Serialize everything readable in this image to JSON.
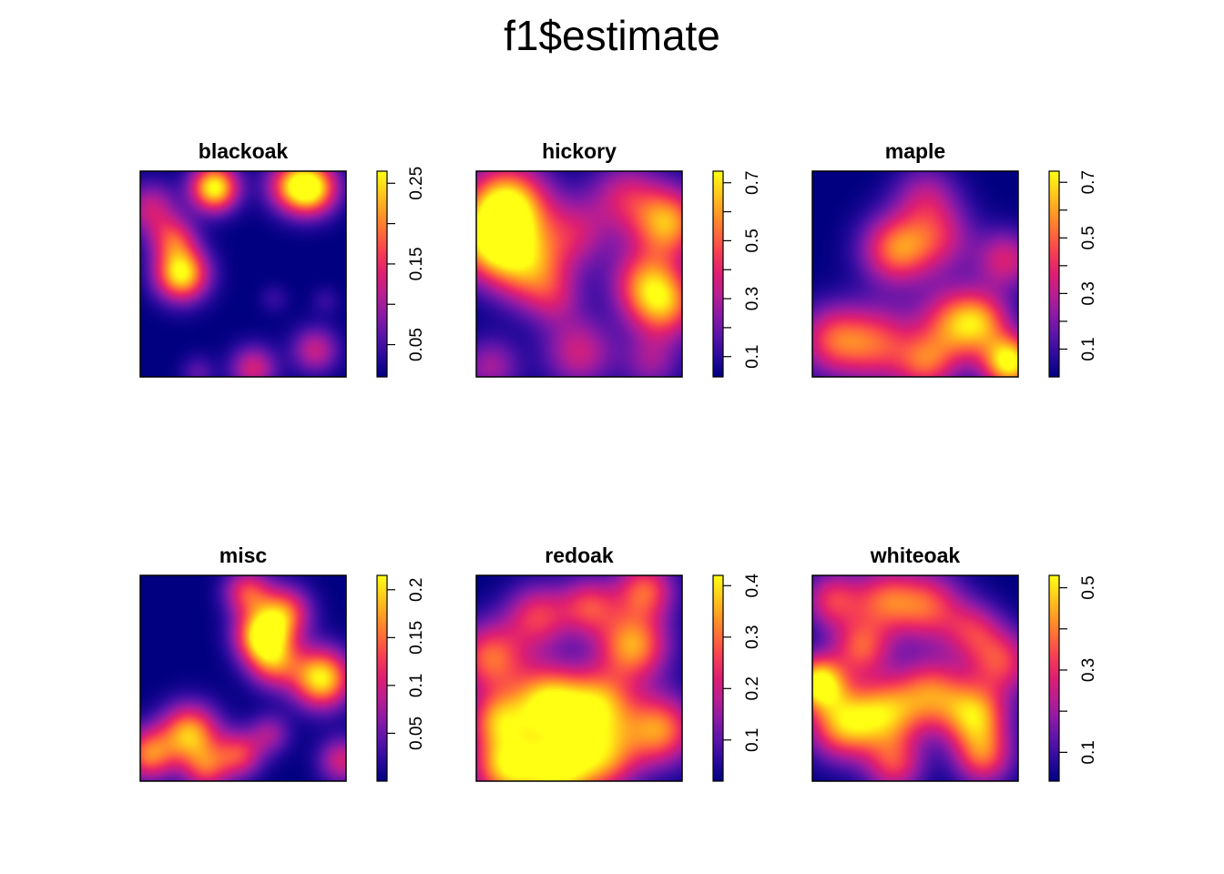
{
  "title": "f1$estimate",
  "palette": [
    "#000080",
    "#2a0a9c",
    "#5a14a8",
    "#8a1aa6",
    "#b81e92",
    "#dd1e72",
    "#f53c55",
    "#ff6a3a",
    "#ff9b25",
    "#ffcd1a",
    "#ffff14"
  ],
  "chart_data": [
    {
      "type": "heatmap",
      "title": "blackoak",
      "range": [
        0.01,
        0.265
      ],
      "ticks": [
        "0.05",
        "0.15",
        "0.25"
      ],
      "tick_values": [
        0.05,
        0.15,
        0.25
      ],
      "minor_ticks": [
        0.05,
        0.1,
        0.15,
        0.2,
        0.25
      ],
      "hotspots": [
        [
          0.36,
          0.08,
          0.26,
          0.08
        ],
        [
          0.83,
          0.08,
          0.24,
          0.09
        ],
        [
          0.73,
          0.07,
          0.13,
          0.09
        ],
        [
          0.2,
          0.5,
          0.25,
          0.09
        ],
        [
          0.05,
          0.18,
          0.11,
          0.09
        ],
        [
          0.16,
          0.33,
          0.13,
          0.08
        ],
        [
          0.55,
          0.96,
          0.12,
          0.08
        ],
        [
          0.85,
          0.87,
          0.11,
          0.08
        ],
        [
          0.28,
          0.98,
          0.05,
          0.06
        ],
        [
          0.65,
          0.62,
          0.03,
          0.05
        ],
        [
          0.9,
          0.63,
          0.03,
          0.05
        ]
      ]
    },
    {
      "type": "heatmap",
      "title": "hickory",
      "range": [
        0.03,
        0.74
      ],
      "ticks": [
        "0.1",
        "0.3",
        "0.5",
        "0.7"
      ],
      "tick_values": [
        0.1,
        0.3,
        0.5,
        0.7
      ],
      "minor_ticks": [
        0.1,
        0.2,
        0.3,
        0.4,
        0.5,
        0.6,
        0.7
      ],
      "hotspots": [
        [
          0.15,
          0.17,
          0.72,
          0.14
        ],
        [
          0.07,
          0.35,
          0.54,
          0.13
        ],
        [
          0.93,
          0.25,
          0.57,
          0.12
        ],
        [
          0.91,
          0.65,
          0.5,
          0.12
        ],
        [
          0.26,
          0.47,
          0.45,
          0.13
        ],
        [
          0.48,
          0.3,
          0.28,
          0.12
        ],
        [
          0.72,
          0.12,
          0.3,
          0.12
        ],
        [
          0.82,
          0.53,
          0.38,
          0.12
        ],
        [
          0.5,
          0.88,
          0.32,
          0.12
        ],
        [
          0.07,
          0.95,
          0.25,
          0.1
        ],
        [
          0.85,
          0.93,
          0.22,
          0.1
        ],
        [
          0.38,
          0.62,
          0.2,
          0.1
        ]
      ]
    },
    {
      "type": "heatmap",
      "title": "maple",
      "range": [
        0.0,
        0.74
      ],
      "ticks": [
        "0.1",
        "0.3",
        "0.5",
        "0.7"
      ],
      "tick_values": [
        0.1,
        0.3,
        0.5,
        0.7
      ],
      "minor_ticks": [
        0.1,
        0.2,
        0.3,
        0.4,
        0.5,
        0.6,
        0.7
      ],
      "hotspots": [
        [
          0.41,
          0.38,
          0.52,
          0.12
        ],
        [
          0.62,
          0.32,
          0.3,
          0.12
        ],
        [
          0.55,
          0.12,
          0.25,
          0.11
        ],
        [
          0.94,
          0.43,
          0.35,
          0.1
        ],
        [
          0.7,
          0.75,
          0.52,
          0.13
        ],
        [
          0.96,
          0.93,
          0.75,
          0.09
        ],
        [
          0.32,
          0.84,
          0.42,
          0.13
        ],
        [
          0.1,
          0.82,
          0.42,
          0.12
        ],
        [
          0.55,
          0.94,
          0.38,
          0.1
        ],
        [
          0.83,
          0.73,
          0.32,
          0.1
        ]
      ]
    },
    {
      "type": "heatmap",
      "title": "misc",
      "range": [
        0.0,
        0.215
      ],
      "ticks": [
        "0.05",
        "0.1",
        "0.15",
        "0.2"
      ],
      "tick_values": [
        0.05,
        0.1,
        0.15,
        0.2
      ],
      "minor_ticks": [
        0.05,
        0.1,
        0.15,
        0.2
      ],
      "hotspots": [
        [
          0.59,
          0.29,
          0.2,
          0.09
        ],
        [
          0.7,
          0.18,
          0.14,
          0.09
        ],
        [
          0.52,
          0.08,
          0.12,
          0.08
        ],
        [
          0.65,
          0.42,
          0.13,
          0.09
        ],
        [
          0.88,
          0.5,
          0.21,
          0.1
        ],
        [
          0.24,
          0.77,
          0.18,
          0.1
        ],
        [
          0.04,
          0.87,
          0.15,
          0.09
        ],
        [
          0.48,
          0.87,
          0.12,
          0.08
        ],
        [
          0.32,
          0.94,
          0.11,
          0.08
        ],
        [
          0.63,
          0.77,
          0.07,
          0.07
        ],
        [
          0.98,
          0.9,
          0.1,
          0.08
        ]
      ]
    },
    {
      "type": "heatmap",
      "title": "redoak",
      "range": [
        0.02,
        0.42
      ],
      "ticks": [
        "0.1",
        "0.2",
        "0.3",
        "0.4"
      ],
      "tick_values": [
        0.1,
        0.2,
        0.3,
        0.4
      ],
      "minor_ticks": [
        0.1,
        0.2,
        0.3,
        0.4
      ],
      "hotspots": [
        [
          0.35,
          0.63,
          0.4,
          0.13
        ],
        [
          0.15,
          0.93,
          0.36,
          0.12
        ],
        [
          0.4,
          0.95,
          0.35,
          0.12
        ],
        [
          0.6,
          0.63,
          0.3,
          0.12
        ],
        [
          0.76,
          0.34,
          0.32,
          0.12
        ],
        [
          0.82,
          0.07,
          0.25,
          0.1
        ],
        [
          0.07,
          0.4,
          0.27,
          0.12
        ],
        [
          0.89,
          0.75,
          0.3,
          0.12
        ],
        [
          0.3,
          0.2,
          0.22,
          0.11
        ],
        [
          0.55,
          0.15,
          0.22,
          0.1
        ],
        [
          0.62,
          0.88,
          0.28,
          0.12
        ],
        [
          0.1,
          0.7,
          0.25,
          0.1
        ]
      ]
    },
    {
      "type": "heatmap",
      "title": "whiteoak",
      "range": [
        0.03,
        0.53
      ],
      "ticks": [
        "0.1",
        "0.3",
        "0.5"
      ],
      "tick_values": [
        0.1,
        0.3,
        0.5
      ],
      "minor_ticks": [
        0.1,
        0.2,
        0.3,
        0.4,
        0.5
      ],
      "hotspots": [
        [
          0.03,
          0.52,
          0.5,
          0.09
        ],
        [
          0.15,
          0.72,
          0.4,
          0.12
        ],
        [
          0.36,
          0.67,
          0.36,
          0.12
        ],
        [
          0.58,
          0.57,
          0.32,
          0.12
        ],
        [
          0.79,
          0.68,
          0.4,
          0.11
        ],
        [
          0.56,
          0.15,
          0.3,
          0.12
        ],
        [
          0.24,
          0.35,
          0.3,
          0.1
        ],
        [
          0.35,
          0.12,
          0.28,
          0.11
        ],
        [
          0.92,
          0.42,
          0.28,
          0.11
        ],
        [
          0.78,
          0.27,
          0.22,
          0.1
        ],
        [
          0.83,
          0.88,
          0.3,
          0.1
        ],
        [
          0.4,
          0.92,
          0.26,
          0.1
        ],
        [
          0.1,
          0.12,
          0.27,
          0.1
        ]
      ]
    }
  ]
}
